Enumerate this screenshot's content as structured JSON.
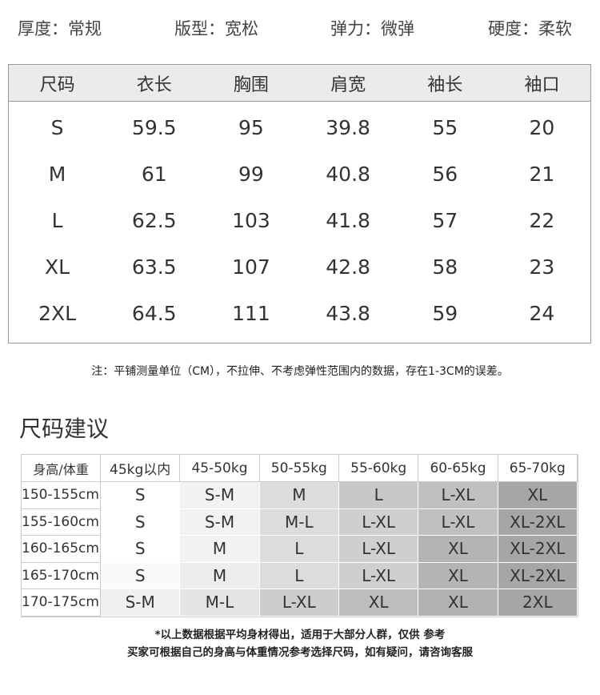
{
  "attributes": [
    {
      "label": "厚度：常规"
    },
    {
      "label": "版型：宽松"
    },
    {
      "label": "弹力：微弹"
    },
    {
      "label": "硬度：柔软"
    }
  ],
  "size_table": {
    "headers": [
      "尺码",
      "衣长",
      "胸围",
      "肩宽",
      "袖长",
      "袖口"
    ],
    "rows": [
      [
        "S",
        "59.5",
        "95",
        "39.8",
        "55",
        "20"
      ],
      [
        "M",
        "61",
        "99",
        "40.8",
        "56",
        "21"
      ],
      [
        "L",
        "62.5",
        "103",
        "41.8",
        "57",
        "22"
      ],
      [
        "XL",
        "63.5",
        "107",
        "42.8",
        "58",
        "23"
      ],
      [
        "2XL",
        "64.5",
        "111",
        "43.8",
        "59",
        "24"
      ]
    ]
  },
  "note": "注：平铺测量单位（CM），不拉伸、不考虑弹性范围内的数据，存在1-3CM的误差。",
  "recommend": {
    "title": "尺码建议",
    "headers": [
      "身高/体重",
      "45kg以内",
      "45-50kg",
      "50-55kg",
      "55-60kg",
      "60-65kg",
      "65-70kg"
    ],
    "rows": [
      {
        "height": "150-155cm",
        "sizes": [
          "S",
          "S-M",
          "M",
          "L",
          "L-XL",
          "XL"
        ],
        "shades": [
          "#ffffff",
          "#f2f2f2",
          "#dcdcdc",
          "#c8c8c8",
          "#c0c0c0",
          "#a6a6a6"
        ]
      },
      {
        "height": "155-160cm",
        "sizes": [
          "S",
          "S-M",
          "M-L",
          "L-XL",
          "L-XL",
          "XL-2XL"
        ],
        "shades": [
          "#ffffff",
          "#f2f2f2",
          "#dcdcdc",
          "#cfcfcf",
          "#c0c0c0",
          "#a6a6a6"
        ]
      },
      {
        "height": "160-165cm",
        "sizes": [
          "S",
          "M",
          "L",
          "L-XL",
          "XL",
          "XL-2XL"
        ],
        "shades": [
          "#ffffff",
          "#f2f2f2",
          "#dcdcdc",
          "#cfcfcf",
          "#b4b4b4",
          "#a6a6a6"
        ]
      },
      {
        "height": "165-170cm",
        "sizes": [
          "S",
          "M",
          "L",
          "L-XL",
          "XL",
          "XL-2XL"
        ],
        "shades": [
          "#fafafa",
          "#ededed",
          "#dcdcdc",
          "#cfcfcf",
          "#b4b4b4",
          "#a6a6a6"
        ]
      },
      {
        "height": "170-175cm",
        "sizes": [
          "S-M",
          "M-L",
          "L-XL",
          "XL",
          "XL",
          "2XL"
        ],
        "shades": [
          "#f0f0f0",
          "#e4e4e4",
          "#cdcdcd",
          "#bdbdbd",
          "#b2b2b2",
          "#a6a6a6"
        ]
      }
    ]
  },
  "footer": {
    "line1": "*以上数据根据平均身材得出，适用于大部分人群，仅供 参考",
    "line2": "买家可根据自己的身高与体重情况参考选择尺码，如有疑问，请咨询客服"
  }
}
